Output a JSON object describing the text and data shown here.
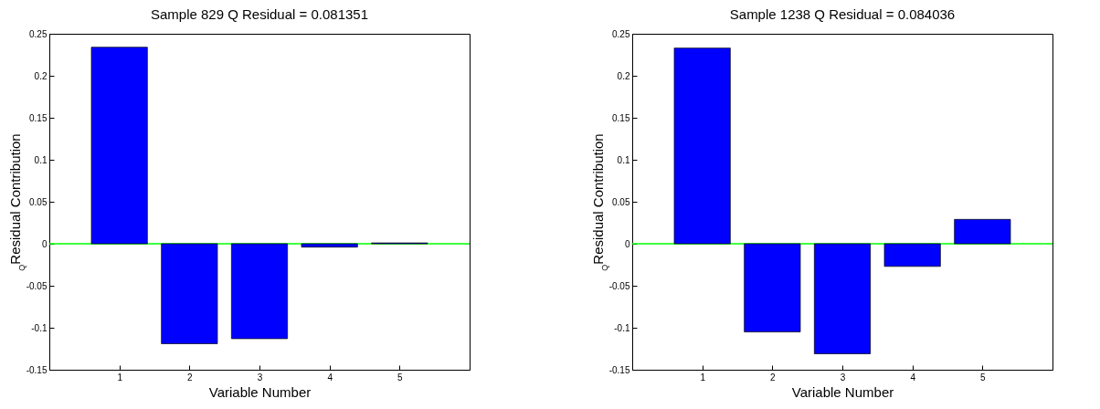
{
  "chart_data": [
    {
      "type": "bar",
      "title": "Sample 829 Q Residual = 0.081351",
      "xlabel": "Variable Number",
      "ylabel": "$_{Q}$Residual Contribution",
      "x": [
        1,
        2,
        3,
        4,
        5
      ],
      "values": [
        0.234,
        -0.119,
        -0.113,
        -0.004,
        0.001
      ],
      "color": "#0000ff",
      "xlim": [
        0,
        6
      ],
      "xticks": [
        1,
        2,
        3,
        4,
        5
      ],
      "ylim": [
        -0.15,
        0.25
      ],
      "yticks": [
        -0.15,
        -0.1,
        -0.05,
        0,
        0.05,
        0.1,
        0.15,
        0.2,
        0.25
      ],
      "ref_lines": [
        {
          "axis": "y",
          "value": 0,
          "color": "#00ff00"
        }
      ]
    },
    {
      "type": "bar",
      "title": "Sample 1238 Q Residual = 0.084036",
      "xlabel": "Variable Number",
      "ylabel": "$_{Q}$Residual Contribution",
      "x": [
        1,
        2,
        3,
        4,
        5
      ],
      "values": [
        0.233,
        -0.105,
        -0.131,
        -0.027,
        0.029
      ],
      "color": "#0000ff",
      "xlim": [
        0,
        6
      ],
      "xticks": [
        1,
        2,
        3,
        4,
        5
      ],
      "ylim": [
        -0.15,
        0.25
      ],
      "yticks": [
        -0.15,
        -0.1,
        -0.05,
        0,
        0.05,
        0.1,
        0.15,
        0.2,
        0.25
      ],
      "ref_lines": [
        {
          "axis": "y",
          "value": 0,
          "color": "#00ff00"
        }
      ]
    }
  ]
}
